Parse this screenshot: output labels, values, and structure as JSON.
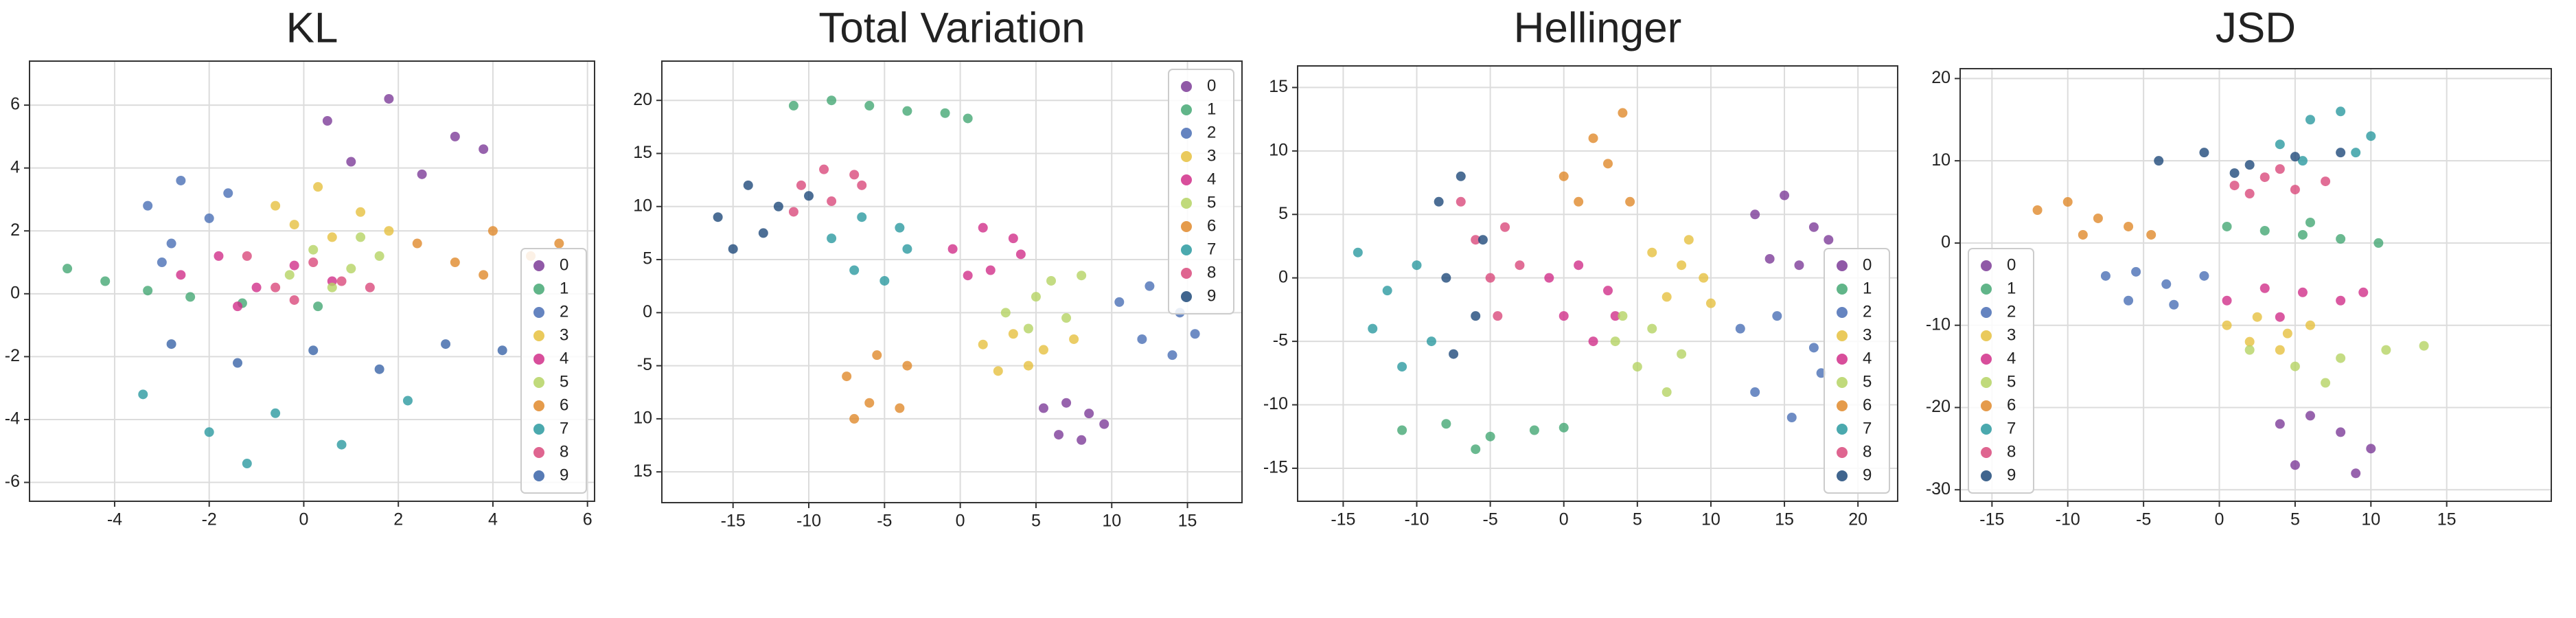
{
  "chart_data": [
    {
      "type": "scatter",
      "title": "KL",
      "xlim": [
        -5.8,
        6.15
      ],
      "ylim": [
        -6.6,
        7.4
      ],
      "xticks": [
        -4,
        -2,
        0,
        2,
        4,
        6
      ],
      "yticks": [
        -6,
        -4,
        -2,
        0,
        2,
        4,
        6
      ],
      "grid": true,
      "legend": "lower right",
      "series": [
        {
          "name": "0",
          "color": "#7d3c98",
          "x": [
            0.5,
            1.8,
            3.2,
            2.5,
            1,
            3.8
          ],
          "y": [
            5.5,
            6.2,
            5.0,
            3.8,
            4.2,
            4.6
          ]
        },
        {
          "name": "1",
          "color": "#45a874",
          "x": [
            -5,
            -4.2,
            -3.3,
            -2.4,
            -1.3,
            0.3
          ],
          "y": [
            0.8,
            0.4,
            0.1,
            -0.1,
            -0.3,
            -0.4
          ]
        },
        {
          "name": "2",
          "color": "#4a6fb5",
          "x": [
            -3.3,
            -2.6,
            -2,
            -2.8,
            -1.6,
            -3
          ],
          "y": [
            2.8,
            3.6,
            2.4,
            1.6,
            3.2,
            1
          ]
        },
        {
          "name": "3",
          "color": "#e6c140",
          "x": [
            -0.6,
            0.3,
            1.2,
            1.8,
            0.6,
            -0.2
          ],
          "y": [
            2.8,
            3.4,
            2.6,
            2.0,
            1.8,
            2.2
          ]
        },
        {
          "name": "4",
          "color": "#d12f8a",
          "x": [
            -2.6,
            -1.8,
            -1,
            -0.2,
            -1.4,
            0.6
          ],
          "y": [
            0.6,
            1.2,
            0.2,
            0.9,
            -0.4,
            0.4
          ]
        },
        {
          "name": "5",
          "color": "#b5d364",
          "x": [
            0.2,
            1,
            1.6,
            0.6,
            -0.3,
            1.2
          ],
          "y": [
            1.4,
            0.8,
            1.2,
            0.2,
            0.6,
            1.8
          ]
        },
        {
          "name": "6",
          "color": "#e0892c",
          "x": [
            2.4,
            3.2,
            4,
            4.8,
            5.4,
            3.8
          ],
          "y": [
            1.6,
            1.0,
            2.0,
            1.2,
            1.6,
            0.6
          ]
        },
        {
          "name": "7",
          "color": "#2c9aa0",
          "x": [
            -3.4,
            -2,
            -0.6,
            0.8,
            2.2,
            -1.2
          ],
          "y": [
            -3.2,
            -4.4,
            -3.8,
            -4.8,
            -3.4,
            -5.4
          ]
        },
        {
          "name": "8",
          "color": "#d94a7c",
          "x": [
            -0.6,
            0.2,
            -1.2,
            0.8,
            -0.2,
            1.4
          ],
          "y": [
            0.2,
            1.0,
            1.2,
            0.4,
            -0.2,
            0.2
          ]
        },
        {
          "name": "9",
          "color": "#3a64a8",
          "x": [
            -2.8,
            -1.4,
            0.2,
            1.6,
            3,
            4.2
          ],
          "y": [
            -1.6,
            -2.2,
            -1.8,
            -2.4,
            -1.6,
            -1.8
          ]
        }
      ]
    },
    {
      "type": "scatter",
      "title": "Total Variation",
      "xlim": [
        -19.7,
        18.6
      ],
      "ylim": [
        -17.9,
        23.7
      ],
      "xticks": [
        -15,
        -10,
        -5,
        0,
        5,
        10,
        15
      ],
      "yticks": [
        20,
        15,
        10,
        5,
        0,
        -5,
        {
          "value": -10,
          "label": "10"
        },
        {
          "value": -15,
          "label": "15"
        }
      ],
      "grid": true,
      "legend": "upper right",
      "series": [
        {
          "name": "0",
          "color": "#7d3c98",
          "x": [
            5.5,
            7,
            8.5,
            6.5,
            8,
            9.5
          ],
          "y": [
            -9,
            -8.5,
            -9.5,
            -11.5,
            -12,
            -10.5
          ]
        },
        {
          "name": "1",
          "color": "#45a874",
          "x": [
            -11,
            -8.5,
            -6,
            -3.5,
            -1,
            0.5
          ],
          "y": [
            19.5,
            20,
            19.5,
            19,
            18.8,
            18.3
          ]
        },
        {
          "name": "2",
          "color": "#4a6fb5",
          "x": [
            10.5,
            12.5,
            14.5,
            12,
            14,
            15.5
          ],
          "y": [
            1,
            2.5,
            0,
            -2.5,
            -4,
            -2
          ]
        },
        {
          "name": "3",
          "color": "#e6c140",
          "x": [
            1.5,
            3.5,
            5.5,
            7.5,
            4.5,
            2.5
          ],
          "y": [
            -3,
            -2,
            -3.5,
            -2.5,
            -5,
            -5.5
          ]
        },
        {
          "name": "4",
          "color": "#d12f8a",
          "x": [
            -0.5,
            1.5,
            3.5,
            2,
            0.5,
            4
          ],
          "y": [
            6,
            8,
            7,
            4,
            3.5,
            5.5
          ]
        },
        {
          "name": "5",
          "color": "#b5d364",
          "x": [
            3,
            5,
            7,
            4.5,
            6,
            8
          ],
          "y": [
            0,
            1.5,
            -0.5,
            -1.5,
            3,
            3.5
          ]
        },
        {
          "name": "6",
          "color": "#e0892c",
          "x": [
            -7.5,
            -5.5,
            -3.5,
            -6,
            -4,
            -7
          ],
          "y": [
            -6,
            -4,
            -5,
            -8.5,
            -9,
            -10
          ]
        },
        {
          "name": "7",
          "color": "#2c9aa0",
          "x": [
            -8.5,
            -6.5,
            -4,
            -7,
            -5,
            -3.5
          ],
          "y": [
            7,
            9,
            8,
            4,
            3,
            6
          ]
        },
        {
          "name": "8",
          "color": "#d94a7c",
          "x": [
            -10.5,
            -9,
            -7,
            -11,
            -8.5,
            -6.5
          ],
          "y": [
            12,
            13.5,
            13,
            9.5,
            10.5,
            12
          ]
        },
        {
          "name": "9",
          "color": "#1f4a7a",
          "x": [
            -16,
            -14,
            -12,
            -15,
            -10,
            -13
          ],
          "y": [
            9,
            12,
            10,
            6,
            11,
            7.5
          ]
        }
      ]
    },
    {
      "type": "scatter",
      "title": "Hellinger",
      "xlim": [
        -18.1,
        22.7
      ],
      "ylim": [
        -17.6,
        16.7
      ],
      "xticks": [
        -15,
        -10,
        -5,
        0,
        5,
        10,
        15,
        20
      ],
      "yticks": [
        -15,
        -10,
        -5,
        0,
        5,
        10,
        15
      ],
      "grid": true,
      "legend": "lower right",
      "series": [
        {
          "name": "0",
          "color": "#7d3c98",
          "x": [
            13,
            15,
            17,
            14,
            16,
            18
          ],
          "y": [
            5,
            6.5,
            4,
            1.5,
            1,
            3
          ]
        },
        {
          "name": "1",
          "color": "#45a874",
          "x": [
            -11,
            -8,
            -5,
            -2,
            0,
            -6
          ],
          "y": [
            -12,
            -11.5,
            -12.5,
            -12,
            -11.8,
            -13.5
          ]
        },
        {
          "name": "2",
          "color": "#4a6fb5",
          "x": [
            12,
            14.5,
            17,
            13,
            15.5,
            17.5
          ],
          "y": [
            -4,
            -3,
            -5.5,
            -9,
            -11,
            -7.5
          ]
        },
        {
          "name": "3",
          "color": "#e6c140",
          "x": [
            6,
            8,
            9.5,
            7,
            8.5,
            10
          ],
          "y": [
            2,
            1,
            0,
            -1.5,
            3,
            -2
          ]
        },
        {
          "name": "4",
          "color": "#d12f8a",
          "x": [
            -1,
            1,
            3,
            0,
            2,
            3.5
          ],
          "y": [
            0,
            1,
            -1,
            -3,
            -5,
            -3
          ]
        },
        {
          "name": "5",
          "color": "#b5d364",
          "x": [
            4,
            6,
            8,
            5,
            7,
            3.5
          ],
          "y": [
            -3,
            -4,
            -6,
            -7,
            -9,
            -5
          ]
        },
        {
          "name": "6",
          "color": "#e0892c",
          "x": [
            0,
            2,
            4,
            1,
            3,
            4.5
          ],
          "y": [
            8,
            11,
            13,
            6,
            9,
            6
          ]
        },
        {
          "name": "7",
          "color": "#2c9aa0",
          "x": [
            -14,
            -12,
            -10,
            -13,
            -9,
            -11
          ],
          "y": [
            2,
            -1,
            1,
            -4,
            -5,
            -7
          ]
        },
        {
          "name": "8",
          "color": "#d94a7c",
          "x": [
            -6,
            -4,
            -5,
            -3,
            -7,
            -4.5
          ],
          "y": [
            3,
            4,
            0,
            1,
            6,
            -3
          ]
        },
        {
          "name": "9",
          "color": "#1f4a7a",
          "x": [
            -8.5,
            -7,
            -5.5,
            -8,
            -6,
            -7.5
          ],
          "y": [
            6,
            8,
            3,
            0,
            -3,
            -6
          ]
        }
      ]
    },
    {
      "type": "scatter",
      "title": "JSD",
      "xlim": [
        -17.1,
        21.9
      ],
      "ylim": [
        -31.4,
        21.2
      ],
      "xticks": [
        -15,
        -10,
        -5,
        0,
        5,
        10,
        15
      ],
      "yticks": [
        -30,
        -20,
        -10,
        0,
        10,
        20
      ],
      "grid": true,
      "legend": "lower left",
      "series": [
        {
          "name": "0",
          "color": "#7d3c98",
          "x": [
            4,
            6,
            8,
            10,
            5,
            9
          ],
          "y": [
            -22,
            -21,
            -23,
            -25,
            -27,
            -28
          ]
        },
        {
          "name": "1",
          "color": "#45a874",
          "x": [
            0.5,
            3,
            5.5,
            8,
            10.5,
            6
          ],
          "y": [
            2,
            1.5,
            1,
            0.5,
            0,
            2.5
          ]
        },
        {
          "name": "2",
          "color": "#4a6fb5",
          "x": [
            -7.5,
            -5.5,
            -3.5,
            -1,
            -6,
            -3
          ],
          "y": [
            -4,
            -3.5,
            -5,
            -4,
            -7,
            -7.5
          ]
        },
        {
          "name": "3",
          "color": "#e6c140",
          "x": [
            0.5,
            2.5,
            4.5,
            6,
            2,
            4
          ],
          "y": [
            -10,
            -9,
            -11,
            -10,
            -12,
            -13
          ]
        },
        {
          "name": "4",
          "color": "#d12f8a",
          "x": [
            0.5,
            3,
            5.5,
            8,
            4,
            9.5
          ],
          "y": [
            -7,
            -5.5,
            -6,
            -7,
            -9,
            -6
          ]
        },
        {
          "name": "5",
          "color": "#b5d364",
          "x": [
            2,
            5,
            8,
            11,
            13.5,
            7
          ],
          "y": [
            -13,
            -15,
            -14,
            -13,
            -12.5,
            -17
          ]
        },
        {
          "name": "6",
          "color": "#e0892c",
          "x": [
            -12,
            -10,
            -8,
            -6,
            -4.5,
            -9
          ],
          "y": [
            4,
            5,
            3,
            2,
            1,
            1
          ]
        },
        {
          "name": "7",
          "color": "#2c9aa0",
          "x": [
            4,
            6,
            8,
            10,
            5.5,
            9
          ],
          "y": [
            12,
            15,
            16,
            13,
            10,
            11
          ]
        },
        {
          "name": "8",
          "color": "#d94a7c",
          "x": [
            1,
            3,
            5,
            7,
            4,
            2
          ],
          "y": [
            7,
            8,
            6.5,
            7.5,
            9,
            6
          ]
        },
        {
          "name": "9",
          "color": "#1f4a7a",
          "x": [
            -4,
            -1,
            2,
            5,
            8,
            1
          ],
          "y": [
            10,
            11,
            9.5,
            10.5,
            11,
            8.5
          ]
        }
      ]
    }
  ]
}
